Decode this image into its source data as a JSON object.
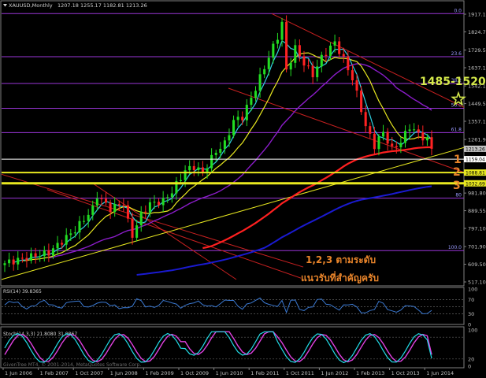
{
  "header": {
    "symbol": "XAUUSD,Monthly",
    "ohlc": "1207.18 1255.17 1182.81 1213.26"
  },
  "rsi_label": "RSI(14) 39.8365",
  "stoch_label": "Stoch(14,3,3) 21.8080 31.9867",
  "copyright": "GivenTree MT4, © 2001-2014, MetaQuotes Software Corp.",
  "annotations": {
    "target": "1485-1520",
    "level_1": "1",
    "level_2": "2",
    "level_3": "3",
    "note_line1": "1,2,3 ตามระดับ",
    "note_line2": "แนวรับที่สำคัญครับ"
  },
  "colors": {
    "background": "#000000",
    "bull": "#22dd22",
    "bear": "#ff2222",
    "fibo": "#9a36d8",
    "trend_red": "#c82020",
    "trend_yellow": "#e8e820",
    "ma_cyan": "#30d0e0",
    "ma_yellow": "#e8e820",
    "ma_purple": "#8a1cc8",
    "ma_blue": "#1a1ad0",
    "ma_red": "#ff2020",
    "rsi_line": "#3a78d0",
    "stoch_main": "#22dde8",
    "stoch_signal": "#e040e0",
    "target_star": "#d4e84a",
    "annotation": "#e8842a"
  },
  "chart_data": {
    "type": "candlestick",
    "price_axis": {
      "ticks": [
        "1917.10",
        "1824.70",
        "1729.55",
        "1637.10",
        "1542.15",
        "1449.50",
        "1357.10",
        "1261.90",
        "1213.26",
        "1159.04",
        "1088.81",
        "1032.69",
        "981.80",
        "889.55",
        "797.10",
        "701.90",
        "609.50",
        "517.10"
      ],
      "highlighted": [
        {
          "label": "1213.26",
          "value": 1213.26,
          "color": "#c0c0c0"
        },
        {
          "label": "1159.04",
          "value": 1159.04,
          "color": "#ffffff"
        },
        {
          "label": "1088.81",
          "value": 1088.81,
          "color": "#e8e820"
        },
        {
          "label": "1032.69",
          "value": 1032.69,
          "color": "#e8e820"
        }
      ],
      "range": [
        490,
        1960
      ]
    },
    "date_axis": {
      "ticks": [
        "1 Jun 2006",
        "1 Feb 2007",
        "1 Oct 2007",
        "1 Jun 2008",
        "1 Feb 2009",
        "1 Oct 2009",
        "1 Jun 2010",
        "1 Feb 2011",
        "1 Oct 2011",
        "1 Jun 2012",
        "1 Feb 2013",
        "1 Oct 2013",
        "1 Jun 2014"
      ]
    },
    "fibonacci_levels": [
      {
        "label": "0.0",
        "value": 1920
      },
      {
        "label": "23.6",
        "value": 1695
      },
      {
        "label": "38.2",
        "value": 1555
      },
      {
        "label": "50.0",
        "value": 1425
      },
      {
        "label": "61.8",
        "value": 1298
      },
      {
        "label": "80",
        "value": 955
      },
      {
        "label": "100.0",
        "value": 681
      }
    ],
    "horizontal_levels": [
      {
        "value": 1159.04,
        "color": "#ffffff"
      },
      {
        "value": 1088.81,
        "color": "#e8e820"
      },
      {
        "value": 1032.69,
        "color": "#e8e820"
      }
    ],
    "ohlc_monthly": [],
    "rsi": {
      "label": "RSI(14)",
      "value": 39.8365,
      "levels": [
        70,
        50,
        30
      ],
      "scale_ticks": [
        "100",
        "70",
        "30",
        "0"
      ]
    },
    "stochastic": {
      "label": "Stoch(14,3,3)",
      "main": 21.808,
      "signal": 31.9867,
      "levels": [
        80,
        20
      ],
      "scale_ticks": [
        "100",
        "20",
        "0"
      ]
    }
  }
}
